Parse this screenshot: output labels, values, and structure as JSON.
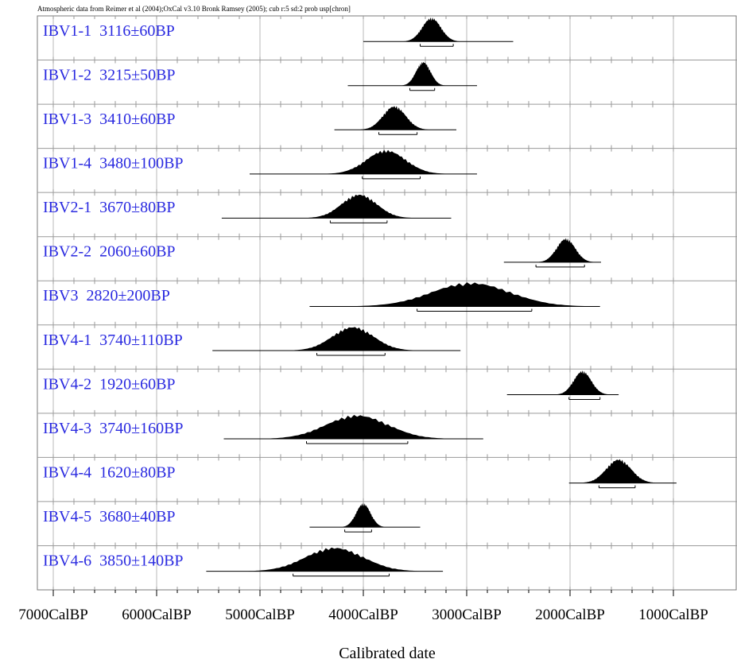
{
  "header": {
    "caption": "Atmospheric data from Reimer et al (2004);OxCal v3.10 Bronk Ramsey (2005); cub r:5 sd:2 prob usp[chron]"
  },
  "chart_data": {
    "type": "probability-distribution",
    "xlabel": "Calibrated date",
    "x_axis_direction": "reversed",
    "xlim": [
      7000,
      900
    ],
    "x_ticks": [
      7000,
      6000,
      5000,
      4000,
      3000,
      2000,
      1000
    ],
    "x_tick_labels": [
      "7000CalBP",
      "6000CalBP",
      "5000CalBP",
      "4000CalBP",
      "3000CalBP",
      "2000CalBP",
      "1000CalBP"
    ],
    "grid": true,
    "series": [
      {
        "sample": "IBV1-1",
        "date": "3116±60BP",
        "peak_calbp": 3340,
        "spread": 90,
        "line_range": [
          4000,
          2550
        ],
        "range_95": [
          3450,
          3130
        ]
      },
      {
        "sample": "IBV1-2",
        "date": "3215±50BP",
        "peak_calbp": 3420,
        "spread": 70,
        "line_range": [
          4150,
          2900
        ],
        "range_95": [
          3550,
          3310
        ]
      },
      {
        "sample": "IBV1-3",
        "date": "3410±60BP",
        "peak_calbp": 3700,
        "spread": 110,
        "line_range": [
          4280,
          3100
        ],
        "range_95": [
          3850,
          3480
        ]
      },
      {
        "sample": "IBV1-4",
        "date": "3480±100BP",
        "peak_calbp": 3780,
        "spread": 190,
        "line_range": [
          5100,
          2900
        ],
        "range_95": [
          4010,
          3450
        ]
      },
      {
        "sample": "IBV2-1",
        "date": "3670±80BP",
        "peak_calbp": 4040,
        "spread": 170,
        "line_range": [
          5370,
          3150
        ],
        "range_95": [
          4320,
          3770
        ]
      },
      {
        "sample": "IBV2-2",
        "date": "2060±60BP",
        "peak_calbp": 2040,
        "spread": 90,
        "line_range": [
          2640,
          1700
        ],
        "range_95": [
          2330,
          1860
        ]
      },
      {
        "sample": "IBV3",
        "date": "2820±200BP",
        "peak_calbp": 2960,
        "spread": 380,
        "line_range": [
          4520,
          1710
        ],
        "range_95": [
          3480,
          2370
        ]
      },
      {
        "sample": "IBV4-1",
        "date": "3740±110BP",
        "peak_calbp": 4100,
        "spread": 200,
        "line_range": [
          5460,
          3060
        ],
        "range_95": [
          4450,
          3790
        ]
      },
      {
        "sample": "IBV4-2",
        "date": "1920±60BP",
        "peak_calbp": 1880,
        "spread": 85,
        "line_range": [
          2610,
          1530
        ],
        "range_95": [
          2010,
          1710
        ]
      },
      {
        "sample": "IBV4-3",
        "date": "3740±160BP",
        "peak_calbp": 4060,
        "spread": 300,
        "line_range": [
          5350,
          2840
        ],
        "range_95": [
          4550,
          3570
        ]
      },
      {
        "sample": "IBV4-4",
        "date": "1620±80BP",
        "peak_calbp": 1530,
        "spread": 120,
        "line_range": [
          2010,
          970
        ],
        "range_95": [
          1720,
          1370
        ]
      },
      {
        "sample": "IBV4-5",
        "date": "3680±40BP",
        "peak_calbp": 4000,
        "spread": 70,
        "line_range": [
          4520,
          3450
        ],
        "range_95": [
          4180,
          3920
        ]
      },
      {
        "sample": "IBV4-6",
        "date": "3850±140BP",
        "peak_calbp": 4280,
        "spread": 280,
        "line_range": [
          5520,
          3230
        ],
        "range_95": [
          4680,
          3750
        ]
      }
    ]
  }
}
